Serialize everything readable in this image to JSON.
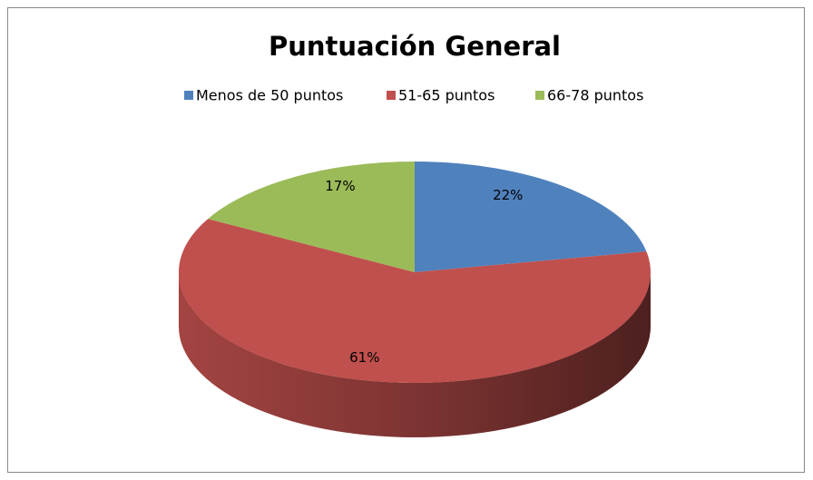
{
  "chart_data": {
    "type": "pie",
    "title": "Puntuación General",
    "categories": [
      "Menos de 50 puntos",
      "51-65 puntos",
      "66-78 puntos"
    ],
    "values": [
      22,
      61,
      17
    ],
    "value_labels": [
      "22%",
      "61%",
      "17%"
    ],
    "colors": [
      "#4f81bd",
      "#c0504d",
      "#9bbb59"
    ],
    "legend": "top"
  }
}
